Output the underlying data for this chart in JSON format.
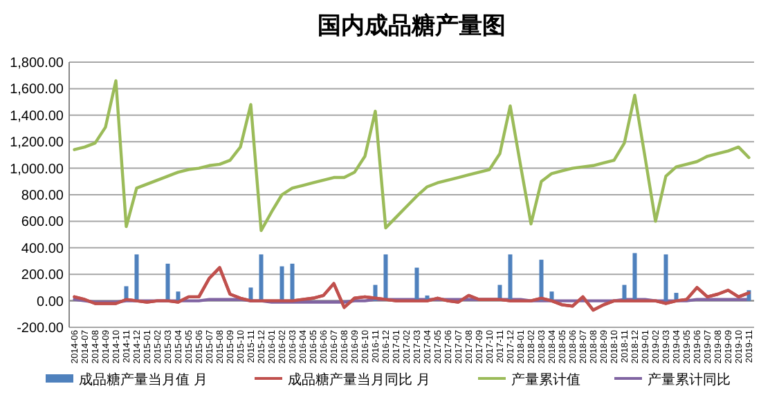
{
  "chart_data": {
    "type": "bar",
    "title": "国内成品糖产量图",
    "categories": [
      "2014-06",
      "2014-07",
      "2014-08",
      "2014-09",
      "2014-10",
      "2014-11",
      "2014-12",
      "2015-01",
      "2015-02",
      "2015-03",
      "2015-04",
      "2015-05",
      "2015-06",
      "2015-07",
      "2015-08",
      "2015-09",
      "2015-10",
      "2015-11",
      "2015-12",
      "2016-01",
      "2016-02",
      "2016-03",
      "2016-04",
      "2016-05",
      "2016-06",
      "2016-07",
      "2016-08",
      "2016-09",
      "2016-10",
      "2016-11",
      "2016-12",
      "2017-01",
      "2017-02",
      "2017-03",
      "2017-04",
      "2017-05",
      "2017-06",
      "2017-07",
      "2017-08",
      "2017-09",
      "2017-10",
      "2017-11",
      "2017-12",
      "2018-01",
      "2018-02",
      "2018-03",
      "2018-04",
      "2018-05",
      "2018-06",
      "2018-07",
      "2018-08",
      "2018-09",
      "2018-10",
      "2018-11",
      "2018-12",
      "2019-01",
      "2019-02",
      "2019-03",
      "2019-04",
      "2019-05",
      "2019-06",
      "2019-07",
      "2019-08",
      "2019-09",
      "2019-10",
      "2019-11"
    ],
    "series": [
      {
        "name": "成品糖产量当月值 月",
        "color": "#4f81bd",
        "values": [
          0,
          0,
          0,
          0,
          0,
          110,
          350,
          0,
          0,
          280,
          70,
          0,
          0,
          0,
          0,
          0,
          0,
          100,
          350,
          0,
          260,
          280,
          0,
          0,
          0,
          0,
          0,
          0,
          0,
          120,
          350,
          0,
          0,
          250,
          40,
          0,
          0,
          0,
          0,
          0,
          0,
          120,
          350,
          0,
          0,
          310,
          70,
          0,
          0,
          0,
          0,
          0,
          null,
          120,
          360,
          0,
          0,
          350,
          60,
          0,
          0,
          0,
          0,
          0,
          0,
          80
        ]
      },
      {
        "name": "成品糖产量当月同比 月",
        "type": "line",
        "color": "#c0504d",
        "values": [
          30,
          10,
          -20,
          -20,
          -20,
          10,
          0,
          -10,
          0,
          0,
          -10,
          30,
          30,
          170,
          250,
          50,
          20,
          0,
          0,
          0,
          0,
          0,
          10,
          20,
          40,
          130,
          -50,
          20,
          30,
          20,
          10,
          0,
          0,
          0,
          0,
          20,
          0,
          -10,
          40,
          10,
          10,
          10,
          0,
          0,
          0,
          20,
          0,
          -30,
          -40,
          30,
          -70,
          -30,
          0,
          0,
          0,
          0,
          0,
          -20,
          0,
          10,
          100,
          30,
          50,
          80,
          30,
          60
        ]
      },
      {
        "name": "产量累计值",
        "type": "line",
        "color": "#9bbb59",
        "values": [
          1140,
          1160,
          1190,
          1310,
          1660,
          560,
          850,
          880,
          910,
          940,
          970,
          990,
          1000,
          1020,
          1030,
          1060,
          1160,
          1480,
          530,
          670,
          800,
          850,
          870,
          890,
          910,
          930,
          930,
          970,
          1090,
          1430,
          550,
          630,
          710,
          790,
          860,
          890,
          910,
          930,
          950,
          970,
          990,
          1110,
          1470,
          1020,
          580,
          900,
          960,
          980,
          1000,
          1010,
          1020,
          1040,
          1060,
          1190,
          1550,
          1080,
          600,
          940,
          1010,
          1030,
          1050,
          1090,
          1110,
          1130,
          1160,
          1080
        ]
      },
      {
        "name": "产量累计同比",
        "type": "line",
        "color": "#8064a2",
        "values": [
          10,
          0,
          -10,
          -10,
          -10,
          0,
          0,
          0,
          0,
          0,
          0,
          0,
          0,
          10,
          10,
          10,
          10,
          0,
          0,
          -10,
          -10,
          -10,
          -10,
          -10,
          -10,
          -10,
          -10,
          0,
          0,
          10,
          10,
          10,
          10,
          10,
          10,
          10,
          10,
          10,
          10,
          10,
          10,
          10,
          10,
          10,
          0,
          0,
          0,
          0,
          0,
          0,
          0,
          0,
          0,
          10,
          10,
          10,
          0,
          0,
          0,
          0,
          10,
          10,
          10,
          10,
          10,
          10
        ]
      }
    ],
    "ylim": [
      -200,
      1800
    ],
    "yticks": [
      {
        "value": -200,
        "label": "-200.00"
      },
      {
        "value": 0,
        "label": "0.00"
      },
      {
        "value": 200,
        "label": "200.00"
      },
      {
        "value": 400,
        "label": "400.00"
      },
      {
        "value": 600,
        "label": "600.00"
      },
      {
        "value": 800,
        "label": "800.00"
      },
      {
        "value": 1000,
        "label": "1,000.00"
      },
      {
        "value": 1200,
        "label": "1,200.00"
      },
      {
        "value": 1400,
        "label": "1,400.00"
      },
      {
        "value": 1600,
        "label": "1,600.00"
      },
      {
        "value": 1800,
        "label": "1,800.00"
      }
    ],
    "grid": "y",
    "legend": "bottom"
  }
}
